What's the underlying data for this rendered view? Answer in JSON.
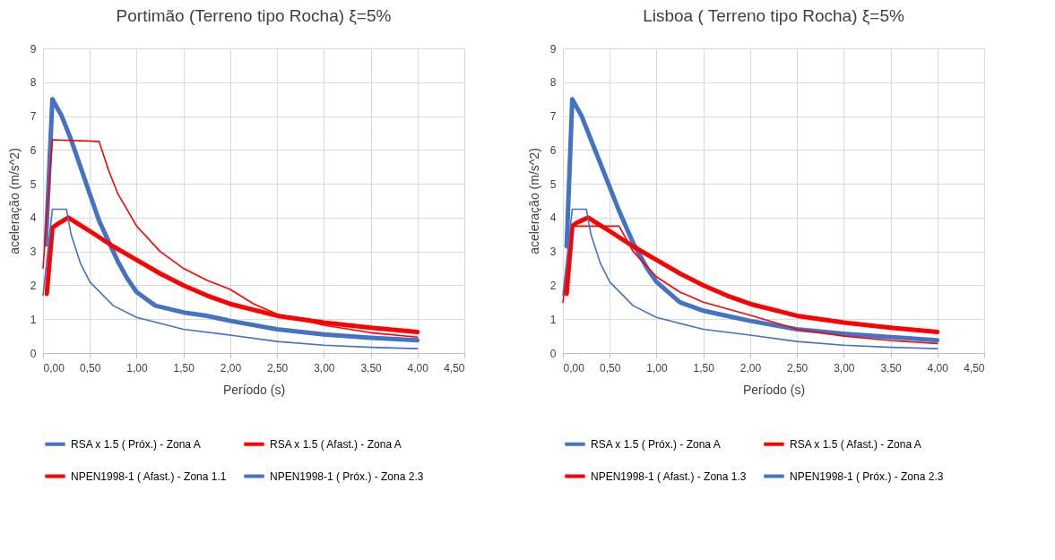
{
  "chart_data": [
    {
      "type": "line",
      "title": "Portimão (Terreno tipo Rocha) ξ=5%",
      "xlabel": "Período (s)",
      "ylabel": "aceleração (m/s^2)",
      "xlim": [
        0,
        4.5
      ],
      "ylim": [
        0,
        9
      ],
      "xticks": [
        {
          "value": 0,
          "label": "0,00"
        },
        {
          "value": 0.5,
          "label": "0,50"
        },
        {
          "value": 1,
          "label": "1,00"
        },
        {
          "value": 1.5,
          "label": "1,50"
        },
        {
          "value": 2,
          "label": "2,00"
        },
        {
          "value": 2.5,
          "label": "2,50"
        },
        {
          "value": 3,
          "label": "3,00"
        },
        {
          "value": 3.5,
          "label": "3,50"
        },
        {
          "value": 4,
          "label": "4,00"
        },
        {
          "value": 4.5,
          "label": "4,50"
        }
      ],
      "yticks": [
        0,
        1,
        2,
        3,
        4,
        5,
        6,
        7,
        8,
        9
      ],
      "grid": true,
      "legend": "bottom",
      "marker": "none",
      "line_style": "solid",
      "series": [
        {
          "name": "RSA x 1.5 ( Próx.) - Zona A",
          "color": "#4472c4",
          "x": [
            0.03,
            0.1,
            0.2,
            0.3,
            0.4,
            0.5,
            0.6,
            0.7,
            0.8,
            0.9,
            1.0,
            1.2,
            1.5,
            1.75,
            2.0,
            2.5,
            3.0,
            3.5,
            4.0
          ],
          "values": [
            3.2,
            7.5,
            7.0,
            6.3,
            5.5,
            4.7,
            3.9,
            3.3,
            2.7,
            2.2,
            1.8,
            1.4,
            1.2,
            1.1,
            0.95,
            0.7,
            0.55,
            0.45,
            0.38
          ]
        },
        {
          "name": "RSA x 1.5 ( Afast.) - Zona A",
          "color": "#ff0000",
          "x": [
            0.04,
            0.1,
            0.15,
            0.27,
            0.5,
            0.75,
            1.0,
            1.25,
            1.5,
            1.75,
            2.0,
            2.5,
            3.0,
            3.5,
            4.0
          ],
          "values": [
            1.75,
            3.7,
            3.8,
            4.0,
            3.6,
            3.15,
            2.75,
            2.35,
            2.0,
            1.7,
            1.45,
            1.1,
            0.9,
            0.75,
            0.62
          ]
        },
        {
          "name": "NPEN1998-1 ( Afast.) - Zona 1.1",
          "color": "#ff0000",
          "x": [
            0,
            0.1,
            0.6,
            0.7,
            0.8,
            1.0,
            1.25,
            1.5,
            1.75,
            2.0,
            2.25,
            2.5,
            3.0,
            3.5,
            4.0
          ],
          "values": [
            2.5,
            6.3,
            6.25,
            5.4,
            4.7,
            3.75,
            3.0,
            2.5,
            2.15,
            1.88,
            1.45,
            1.15,
            0.82,
            0.6,
            0.47
          ]
        },
        {
          "name": "NPEN1998-1 ( Próx.) - Zona 2.3",
          "color": "#4472c4",
          "x": [
            0,
            0.1,
            0.25,
            0.3,
            0.4,
            0.5,
            0.75,
            1.0,
            1.5,
            2.0,
            2.5,
            3.0,
            3.5,
            4.0
          ],
          "values": [
            1.7,
            4.25,
            4.25,
            3.5,
            2.65,
            2.1,
            1.4,
            1.05,
            0.7,
            0.53,
            0.34,
            0.23,
            0.17,
            0.13
          ]
        }
      ]
    },
    {
      "type": "line",
      "title": "Lisboa ( Terreno tipo Rocha) ξ=5%",
      "xlabel": "Período (s)",
      "ylabel": "aceleração (m/s^2)",
      "xlim": [
        0,
        4.5
      ],
      "ylim": [
        0,
        9
      ],
      "xticks": [
        {
          "value": 0,
          "label": "0,00"
        },
        {
          "value": 0.5,
          "label": "0,50"
        },
        {
          "value": 1,
          "label": "1,00"
        },
        {
          "value": 1.5,
          "label": "1,50"
        },
        {
          "value": 2,
          "label": "2,00"
        },
        {
          "value": 2.5,
          "label": "2,50"
        },
        {
          "value": 3,
          "label": "3,00"
        },
        {
          "value": 3.5,
          "label": "3,50"
        },
        {
          "value": 4,
          "label": "4,00"
        },
        {
          "value": 4.5,
          "label": "4,50"
        }
      ],
      "yticks": [
        0,
        1,
        2,
        3,
        4,
        5,
        6,
        7,
        8,
        9
      ],
      "grid": true,
      "legend": "bottom",
      "marker": "none",
      "line_style": "solid",
      "series": [
        {
          "name": "RSA x 1.5 ( Próx.) - Zona A",
          "color": "#4472c4",
          "x": [
            0.04,
            0.1,
            0.2,
            0.3,
            0.4,
            0.5,
            0.6,
            0.75,
            0.9,
            1.0,
            1.25,
            1.5,
            1.75,
            2.0,
            2.5,
            3.0,
            3.5,
            4.0
          ],
          "values": [
            3.15,
            7.5,
            7.0,
            6.3,
            5.6,
            4.9,
            4.2,
            3.25,
            2.5,
            2.1,
            1.5,
            1.25,
            1.1,
            0.95,
            0.7,
            0.57,
            0.47,
            0.38
          ]
        },
        {
          "name": "RSA x 1.5 ( Afast.) - Zona A",
          "color": "#ff0000",
          "x": [
            0.04,
            0.1,
            0.15,
            0.27,
            0.5,
            0.75,
            1.0,
            1.25,
            1.5,
            1.75,
            2.0,
            2.5,
            3.0,
            3.5,
            4.0
          ],
          "values": [
            1.75,
            3.75,
            3.85,
            4.0,
            3.6,
            3.15,
            2.75,
            2.35,
            2.0,
            1.7,
            1.45,
            1.1,
            0.9,
            0.75,
            0.62
          ]
        },
        {
          "name": "NPEN1998-1 ( Afast.) - Zona 1.3",
          "color": "#ff0000",
          "x": [
            0,
            0.1,
            0.6,
            0.75,
            1.0,
            1.25,
            1.5,
            2.0,
            2.5,
            3.0,
            3.5,
            4.0
          ],
          "values": [
            1.5,
            3.75,
            3.75,
            3.0,
            2.25,
            1.8,
            1.5,
            1.12,
            0.7,
            0.5,
            0.37,
            0.28
          ]
        },
        {
          "name": "NPEN1998-1 ( Próx.) - Zona 2.3",
          "color": "#4472c4",
          "x": [
            0,
            0.1,
            0.25,
            0.3,
            0.4,
            0.5,
            0.75,
            1.0,
            1.5,
            2.0,
            2.5,
            3.0,
            3.5,
            4.0
          ],
          "values": [
            1.7,
            4.25,
            4.25,
            3.5,
            2.65,
            2.1,
            1.4,
            1.05,
            0.7,
            0.53,
            0.34,
            0.23,
            0.17,
            0.13
          ]
        }
      ]
    }
  ]
}
